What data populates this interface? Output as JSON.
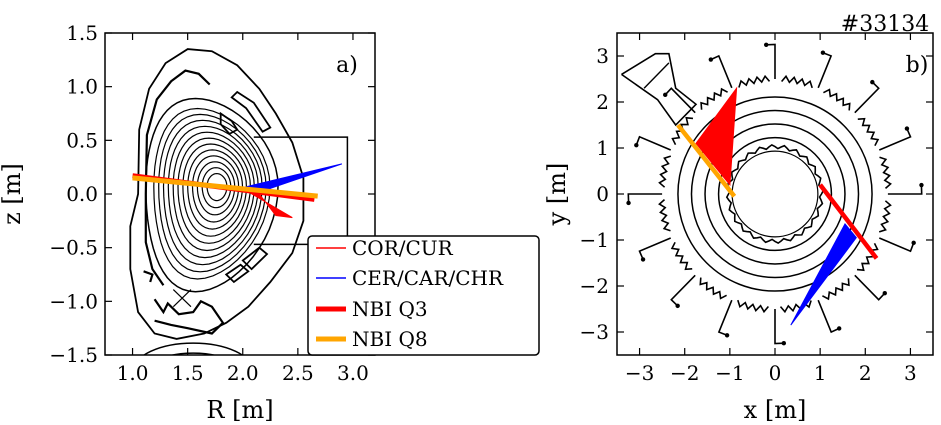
{
  "shot_label": "#33134",
  "chart_data": [
    {
      "panel": "a)",
      "type": "line",
      "xlabel": "R [m]",
      "ylabel": "z [m]",
      "xlim": [
        0.75,
        3.2
      ],
      "ylim": [
        -1.5,
        1.5
      ],
      "xticks": [
        1.0,
        1.5,
        2.0,
        2.5,
        3.0
      ],
      "xtick_labels": [
        "1.0",
        "1.5",
        "2.0",
        "2.5",
        "3.0"
      ],
      "yticks": [
        -1.5,
        -1.0,
        -0.5,
        0.0,
        0.5,
        1.0,
        1.5
      ],
      "ytick_labels": [
        "−1.5",
        "−1.0",
        "−0.5",
        "0.0",
        "0.5",
        "1.0",
        "1.5"
      ],
      "grid": false,
      "legend_position": "lower-right",
      "legend": [
        {
          "label": "COR/CUR",
          "color": "#ff0000",
          "style": "thin"
        },
        {
          "label": "CER/CAR/CHR",
          "color": "#0000ff",
          "style": "thin"
        },
        {
          "label": "NBI Q3",
          "color": "#ff0000",
          "style": "thick"
        },
        {
          "label": "NBI Q8",
          "color": "#ffa500",
          "style": "thick"
        }
      ],
      "magnetic_axis": [
        1.72,
        0.07
      ],
      "x_point": [
        1.45,
        -0.97
      ],
      "flux_contours": {
        "count": 12,
        "inner_radius_r": 0.05,
        "outer_radius_r": 0.58,
        "outer_radius_z_upper": 0.8,
        "outer_radius_z_lower": 0.95
      },
      "nbi_beams": [
        {
          "name": "NBI Q3",
          "color": "#ff0000",
          "start": [
            1.0,
            0.17
          ],
          "end": [
            2.65,
            -0.05
          ]
        },
        {
          "name": "NBI Q8",
          "color": "#ffa500",
          "start": [
            1.0,
            0.15
          ],
          "end": [
            2.68,
            -0.02
          ]
        }
      ],
      "cxrs_fans": [
        {
          "name": "CER/CAR/CHR",
          "color": "#0000ff",
          "origin": [
            2.9,
            0.28
          ],
          "endpoints": [
            [
              2.0,
              0.06
            ],
            [
              2.1,
              0.0
            ]
          ]
        },
        {
          "name": "COR/CUR",
          "color": "#ff0000",
          "origin": [
            2.15,
            0.0
          ],
          "endpoints": [
            [
              2.3,
              -0.2
            ],
            [
              2.45,
              -0.22
            ],
            [
              2.0,
              0.05
            ]
          ]
        }
      ]
    },
    {
      "panel": "b)",
      "type": "line",
      "xlabel": "x [m]",
      "ylabel": "y [m]",
      "xlim": [
        -3.5,
        3.5
      ],
      "ylim": [
        -3.5,
        3.5
      ],
      "xticks": [
        -3,
        -2,
        -1,
        0,
        1,
        2,
        3
      ],
      "xtick_labels": [
        "−3",
        "−2",
        "−1",
        "0",
        "1",
        "2",
        "3"
      ],
      "yticks": [
        -3,
        -2,
        -1,
        0,
        1,
        2,
        3
      ],
      "ytick_labels": [
        "−3",
        "−2",
        "−1",
        "0",
        "1",
        "2",
        "3"
      ],
      "grid": false,
      "center_column_radius": 1.03,
      "flux_circle_radii": [
        1.25,
        1.55,
        1.85,
        2.15
      ],
      "nbi_beams": [
        {
          "name": "NBI Q3",
          "color": "#ff0000",
          "start": [
            1.0,
            0.2
          ],
          "end": [
            2.25,
            -1.4
          ]
        },
        {
          "name": "NBI Q8",
          "color": "#ffa500",
          "start": [
            -2.15,
            1.5
          ],
          "end": [
            -0.9,
            -0.05
          ]
        }
      ],
      "cxrs_fans": [
        {
          "name": "COR/CUR",
          "color": "#ff0000",
          "origin": [
            -0.85,
            2.3
          ],
          "endpoints": [
            [
              -1.75,
              1.1
            ],
            [
              -1.0,
              0.2
            ]
          ]
        },
        {
          "name": "CER/CAR/CHR",
          "color": "#0000ff",
          "origin": [
            0.35,
            -2.85
          ],
          "endpoints": [
            [
              1.55,
              -0.65
            ],
            [
              1.8,
              -0.95
            ]
          ]
        }
      ]
    }
  ]
}
